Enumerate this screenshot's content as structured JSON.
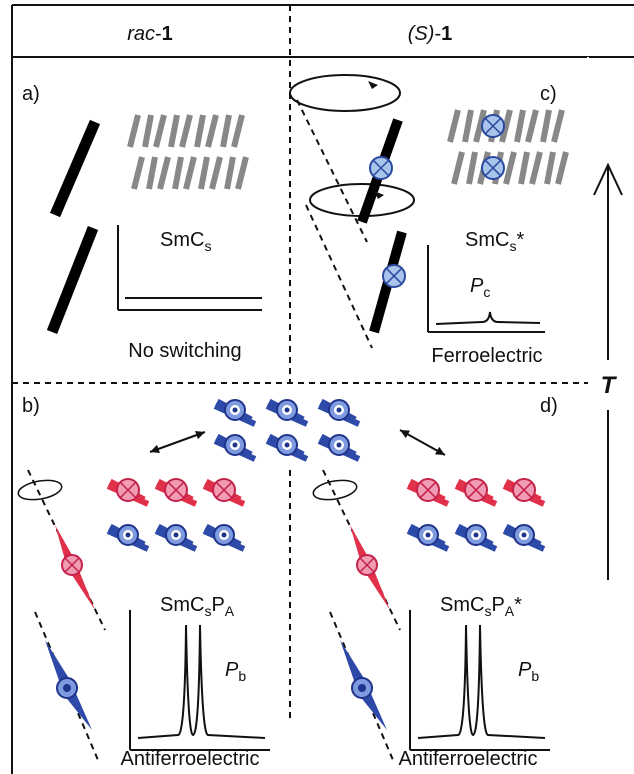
{
  "header": {
    "left": {
      "italic": "rac",
      "rest": "-",
      "bold": "1"
    },
    "right": {
      "italic": "(S)",
      "rest": "-",
      "bold": "1"
    }
  },
  "panels": {
    "a": {
      "label": "a)",
      "phase": {
        "main": "SmC",
        "sub": "s"
      },
      "response": "No switching"
    },
    "b": {
      "label": "b)",
      "phase": {
        "main": "SmC",
        "sub": "s",
        "main2": "P",
        "sub2": "A"
      },
      "polarization": {
        "main": "P",
        "sub": "b"
      },
      "response": "Antiferroelectric"
    },
    "c": {
      "label": "c)",
      "phase": {
        "main": "SmC",
        "sub": "s",
        "star": "*"
      },
      "polarization": {
        "main": "P",
        "sub": "c"
      },
      "response": "Ferroelectric"
    },
    "d": {
      "label": "d)",
      "phase": {
        "main": "SmC",
        "sub": "s",
        "main2": "P",
        "sub2": "A",
        "star": "*"
      },
      "polarization": {
        "main": "P",
        "sub": "b"
      },
      "response": "Antiferroelectric"
    }
  },
  "axis": {
    "label": "T"
  }
}
